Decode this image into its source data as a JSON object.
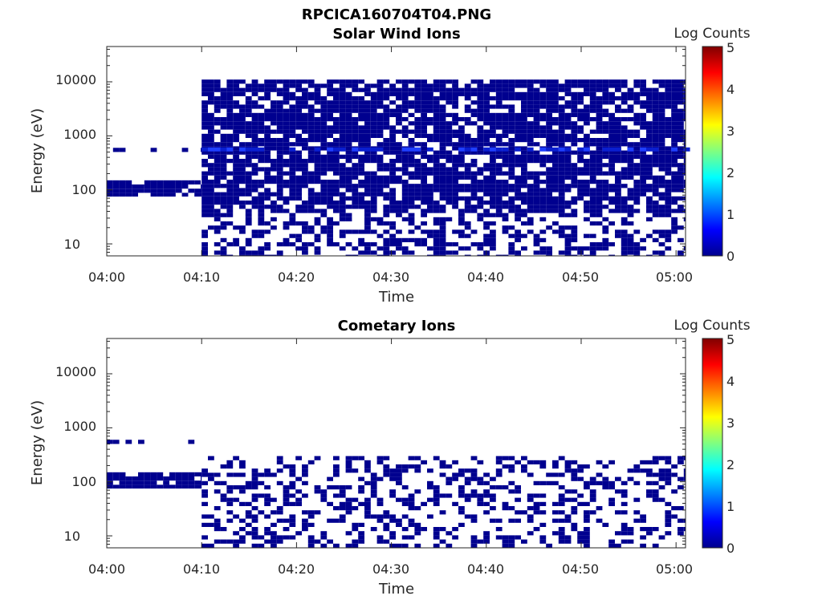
{
  "figure_title": "RPCICA160704T04.PNG",
  "colors": {
    "dark_blue": "#00008f",
    "bright_blue": "#1f3fff",
    "mid_blue": "#0a1fd0",
    "axis": "#262626",
    "colormap": [
      "#00008f",
      "#0000ff",
      "#0080ff",
      "#00ffff",
      "#80ff80",
      "#ffff00",
      "#ff8000",
      "#ff0000",
      "#800000"
    ]
  },
  "chart_data": [
    {
      "type": "heatmap",
      "title": "Solar Wind Ions",
      "xlabel": "Time",
      "ylabel": "Energy (eV)",
      "y_scale": "log",
      "ylim": [
        6,
        45000
      ],
      "xlim": [
        "04:00",
        "05:01"
      ],
      "x_ticks": [
        "04:00",
        "04:10",
        "04:20",
        "04:30",
        "04:40",
        "04:50",
        "05:00"
      ],
      "y_ticks": [
        "10",
        "100",
        "1000",
        "10000"
      ],
      "colorbar": {
        "title": "Log Counts",
        "range": [
          0,
          5
        ],
        "ticks": [
          "0",
          "1",
          "2",
          "3",
          "4",
          "5"
        ]
      },
      "regions": [
        {
          "t0": "04:10",
          "t1": "05:01",
          "e_lo": 6,
          "e_hi": 11000,
          "log_counts": 0,
          "density": 0.8,
          "note": "dense coverage, sparse below 60 eV"
        },
        {
          "t0": "04:00",
          "t1": "04:10",
          "e_lo": 75,
          "e_hi": 150,
          "log_counts": 0,
          "density": 0.9
        },
        {
          "t0": "04:00",
          "t1": "04:10",
          "e_lo": 500,
          "e_hi": 600,
          "log_counts": 0,
          "density": 0.3
        }
      ],
      "peak_band": {
        "energy_eV": 550,
        "t0": "04:10",
        "t1": "05:01",
        "log_counts": 1.0
      }
    },
    {
      "type": "heatmap",
      "title": "Cometary Ions",
      "xlabel": "Time",
      "ylabel": "Energy (eV)",
      "y_scale": "log",
      "ylim": [
        6,
        45000
      ],
      "xlim": [
        "04:00",
        "05:01"
      ],
      "x_ticks": [
        "04:00",
        "04:10",
        "04:20",
        "04:30",
        "04:40",
        "04:50",
        "05:00"
      ],
      "y_ticks": [
        "10",
        "100",
        "1000",
        "10000"
      ],
      "colorbar": {
        "title": "Log Counts",
        "range": [
          0,
          5
        ],
        "ticks": [
          "0",
          "1",
          "2",
          "3",
          "4",
          "5"
        ]
      },
      "regions": [
        {
          "t0": "04:10",
          "t1": "05:01",
          "e_lo": 6,
          "e_hi": 300,
          "log_counts": 0,
          "density": 0.35
        },
        {
          "t0": "04:00",
          "t1": "04:10",
          "e_lo": 75,
          "e_hi": 150,
          "log_counts": 0,
          "density": 0.9
        },
        {
          "t0": "04:00",
          "t1": "04:10",
          "e_lo": 500,
          "e_hi": 600,
          "log_counts": 0,
          "density": 0.3
        }
      ]
    }
  ]
}
